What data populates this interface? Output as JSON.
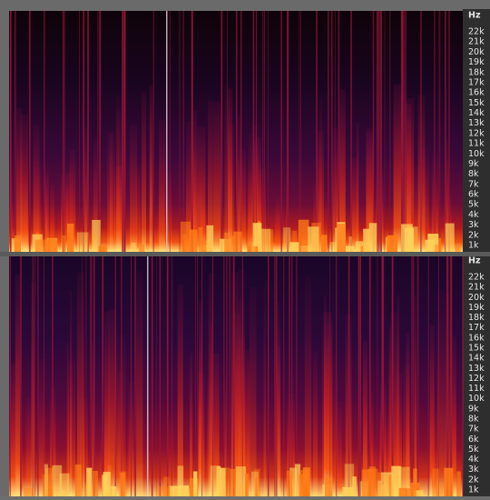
{
  "panels": [
    {
      "axis_title": "Hz",
      "ticks": [
        "22k",
        "21k",
        "20k",
        "19k",
        "18k",
        "17k",
        "16k",
        "15k",
        "14k",
        "13k",
        "12k",
        "11k",
        "10k",
        "9k",
        "8k",
        "7k",
        "6k",
        "5k",
        "4k",
        "3k",
        "2k",
        "1k"
      ]
    },
    {
      "axis_title": "Hz",
      "ticks": [
        "22k",
        "21k",
        "20k",
        "19k",
        "18k",
        "17k",
        "16k",
        "15k",
        "14k",
        "13k",
        "12k",
        "11k",
        "10k",
        "9k",
        "8k",
        "7k",
        "6k",
        "5k",
        "4k",
        "3k",
        "2k",
        "1k"
      ]
    }
  ]
}
